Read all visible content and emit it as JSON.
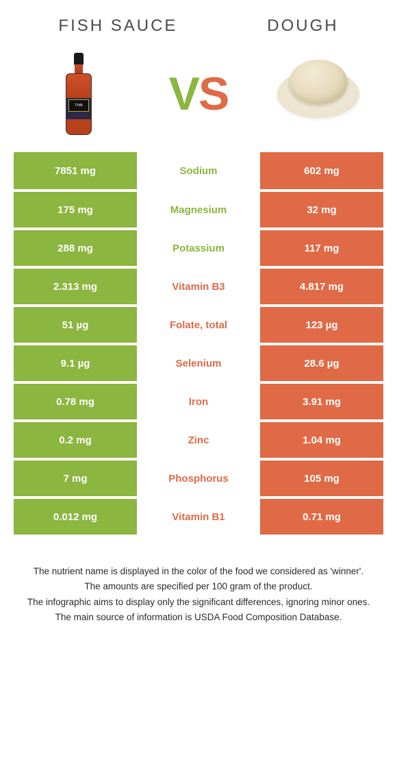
{
  "colors": {
    "green": "#8bb63f",
    "orange": "#e06a46",
    "white": "#ffffff",
    "text_dark": "#4a4a4a"
  },
  "header": {
    "left_title": "Fish sauce",
    "right_title": "Dough"
  },
  "vs": {
    "v": "V",
    "s": "S"
  },
  "table": {
    "left_bg": "#8bb63f",
    "right_bg": "#e06a46",
    "rows": [
      {
        "left": "7851 mg",
        "nutrient": "Sodium",
        "right": "602 mg",
        "winner": "left"
      },
      {
        "left": "175 mg",
        "nutrient": "Magnesium",
        "right": "32 mg",
        "winner": "left"
      },
      {
        "left": "288 mg",
        "nutrient": "Potassium",
        "right": "117 mg",
        "winner": "left"
      },
      {
        "left": "2.313 mg",
        "nutrient": "Vitamin B3",
        "right": "4.817 mg",
        "winner": "right"
      },
      {
        "left": "51 µg",
        "nutrient": "Folate, total",
        "right": "123 µg",
        "winner": "right"
      },
      {
        "left": "9.1 µg",
        "nutrient": "Selenium",
        "right": "28.6 µg",
        "winner": "right"
      },
      {
        "left": "0.78 mg",
        "nutrient": "Iron",
        "right": "3.91 mg",
        "winner": "right"
      },
      {
        "left": "0.2 mg",
        "nutrient": "Zinc",
        "right": "1.04 mg",
        "winner": "right"
      },
      {
        "left": "7 mg",
        "nutrient": "Phosphorus",
        "right": "105 mg",
        "winner": "right"
      },
      {
        "left": "0.012 mg",
        "nutrient": "Vitamin B1",
        "right": "0.71 mg",
        "winner": "right"
      }
    ]
  },
  "footer": {
    "lines": [
      "The nutrient name is displayed in the color of the food we considered as 'winner'.",
      "The amounts are specified per 100 gram of the product.",
      "The infographic aims to display only the significant differences, ignoring minor ones.",
      "The main source of information is USDA Food Composition Database."
    ]
  }
}
